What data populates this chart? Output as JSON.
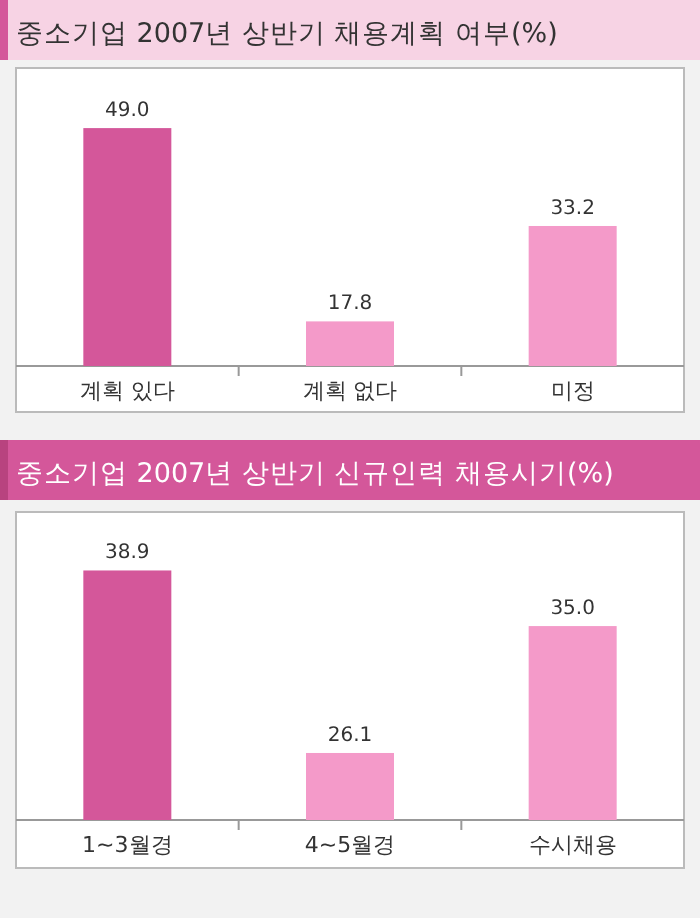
{
  "chart_data": [
    {
      "type": "bar",
      "title": "중소기업 2007년 상반기 채용계획 여부(%)",
      "categories": [
        "계획 있다",
        "계획 없다",
        "미정"
      ],
      "values": [
        49.0,
        17.8,
        33.2
      ],
      "value_labels": [
        "49.0",
        "17.8",
        "33.2"
      ],
      "colors": [
        "#d4579a",
        "#f49ac9",
        "#f49ac9"
      ],
      "ylim": [
        10.6,
        58.7
      ]
    },
    {
      "type": "bar",
      "title": "중소기업 2007년 상반기 신규인력 채용시기(%)",
      "categories": [
        "1~3월경",
        "4~5월경",
        "수시채용"
      ],
      "values": [
        38.9,
        26.1,
        35.0
      ],
      "value_labels": [
        "38.9",
        "26.1",
        "35.0"
      ],
      "colors": [
        "#d4579a",
        "#f49ac9",
        "#f49ac9"
      ],
      "ylim": [
        21.4,
        43.0
      ]
    }
  ]
}
